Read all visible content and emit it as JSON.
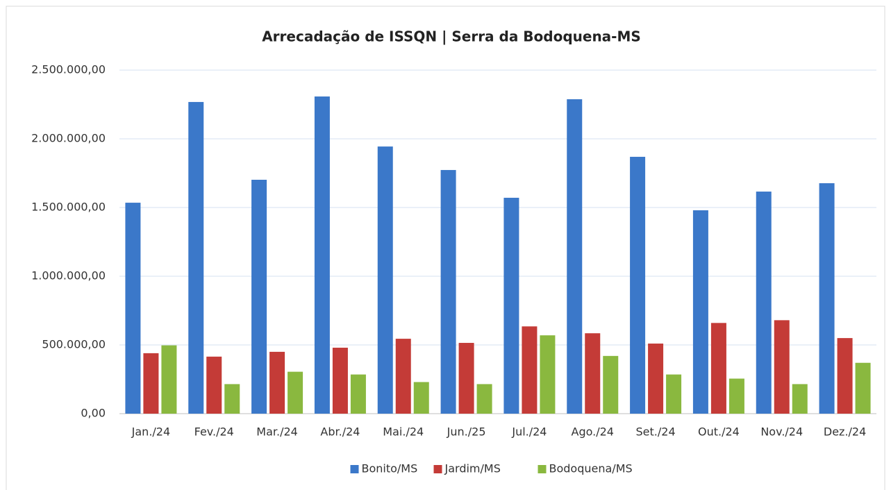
{
  "chart_data": {
    "type": "bar",
    "title": "Arrecadação de ISSQN | Serra da Bodoquena-MS",
    "categories": [
      "Jan./24",
      "Fev./24",
      "Mar./24",
      "Abr./24",
      "Mai./24",
      "Jun./25",
      "Jul./24",
      "Ago./24",
      "Set./24",
      "Out./24",
      "Nov./24",
      "Dez./24"
    ],
    "series": [
      {
        "name": "Bonito/MS",
        "color": "#3b78c9",
        "values": [
          1535000,
          2268000,
          1702000,
          2308000,
          1944000,
          1773000,
          1571000,
          2288000,
          1869000,
          1480000,
          1616000,
          1677000
        ]
      },
      {
        "name": "Jardim/MS",
        "color": "#c43b37",
        "values": [
          440000,
          415000,
          450000,
          480000,
          545000,
          515000,
          635000,
          585000,
          510000,
          660000,
          680000,
          550000
        ]
      },
      {
        "name": "Bodoquena/MS",
        "color": "#8ab83f",
        "values": [
          497000,
          215000,
          305000,
          285000,
          230000,
          215000,
          570000,
          420000,
          285000,
          255000,
          215000,
          370000
        ]
      }
    ],
    "ylim": [
      0,
      2500000
    ],
    "yticks": [
      {
        "value": 0,
        "label": "0,00"
      },
      {
        "value": 500000,
        "label": "500.000,00"
      },
      {
        "value": 1000000,
        "label": "1.000.000,00"
      },
      {
        "value": 1500000,
        "label": "1.500.000,00"
      },
      {
        "value": 2000000,
        "label": "2.000.000,00"
      },
      {
        "value": 2500000,
        "label": "2.500.000,00"
      }
    ],
    "grid": true,
    "legend": "bottom"
  }
}
